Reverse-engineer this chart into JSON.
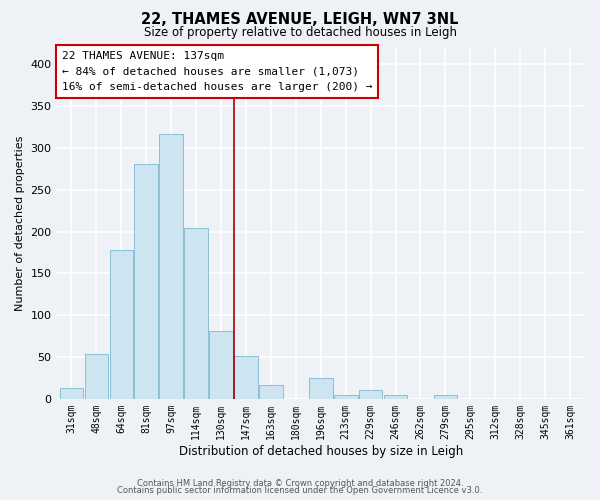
{
  "title": "22, THAMES AVENUE, LEIGH, WN7 3NL",
  "subtitle": "Size of property relative to detached houses in Leigh",
  "xlabel": "Distribution of detached houses by size in Leigh",
  "ylabel": "Number of detached properties",
  "bar_color": "#cce5f0",
  "bar_edgecolor": "#8bbfd4",
  "background_color": "#eef2f7",
  "plot_bg_color": "#eef2f7",
  "categories": [
    "31sqm",
    "48sqm",
    "64sqm",
    "81sqm",
    "97sqm",
    "114sqm",
    "130sqm",
    "147sqm",
    "163sqm",
    "180sqm",
    "196sqm",
    "213sqm",
    "229sqm",
    "246sqm",
    "262sqm",
    "279sqm",
    "295sqm",
    "312sqm",
    "328sqm",
    "345sqm",
    "361sqm"
  ],
  "values": [
    13,
    53,
    178,
    281,
    316,
    204,
    81,
    51,
    16,
    0,
    25,
    5,
    10,
    5,
    0,
    5,
    0,
    0,
    0,
    0,
    0
  ],
  "ylim": [
    0,
    420
  ],
  "vline_x": 6.5,
  "vline_color": "#aa0000",
  "annotation_title": "22 THAMES AVENUE: 137sqm",
  "annotation_line1": "← 84% of detached houses are smaller (1,073)",
  "annotation_line2": "16% of semi-detached houses are larger (200) →",
  "annotation_box_color": "#ffffff",
  "annotation_box_edgecolor": "#cc0000",
  "footer1": "Contains HM Land Registry data © Crown copyright and database right 2024.",
  "footer2": "Contains public sector information licensed under the Open Government Licence v3.0."
}
